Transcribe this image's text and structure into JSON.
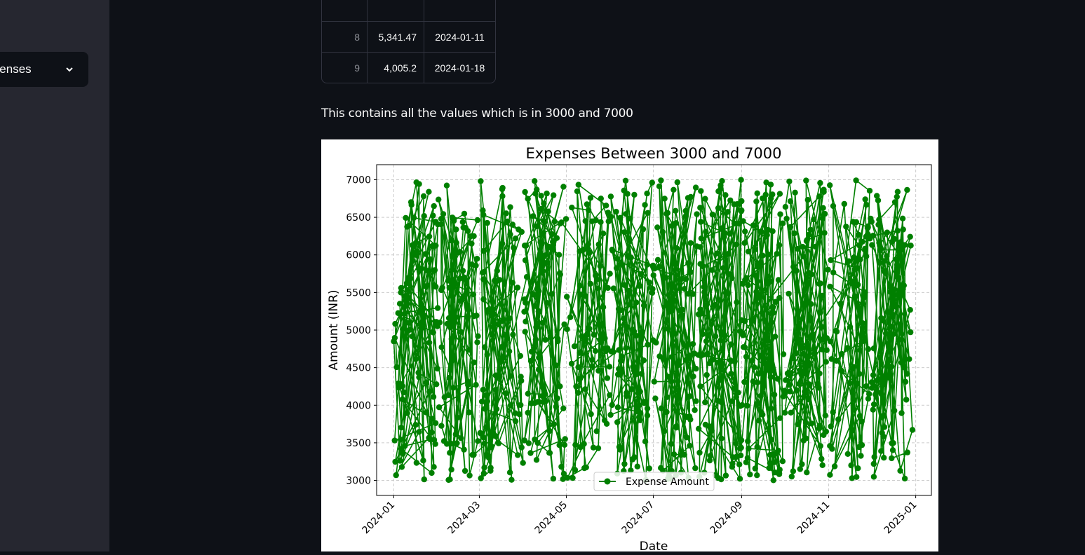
{
  "sidebar": {
    "select_value": "Expenses"
  },
  "table": {
    "rows": [
      {
        "index": "8",
        "amount": "5,341.47",
        "date": "2024-01-11"
      },
      {
        "index": "9",
        "amount": "4,005.2",
        "date": "2024-01-18"
      }
    ]
  },
  "description": "This contains all the values which is in 3000 and 7000",
  "colors": {
    "line": "#008000",
    "page_bg": "#0e1117",
    "sidebar_bg": "#262730"
  },
  "chart_data": {
    "type": "line",
    "title": "Expenses Between 3000 and 7000",
    "xlabel": "Date",
    "ylabel": "Amount (INR)",
    "x_ticks": [
      "2024-01",
      "2024-03",
      "2024-05",
      "2024-07",
      "2024-09",
      "2024-11",
      "2025-01"
    ],
    "y_ticks": [
      "3000",
      "3500",
      "4000",
      "4500",
      "5000",
      "5500",
      "6000",
      "6500",
      "7000"
    ],
    "xlim": [
      "2023-12-20",
      "2025-01-12"
    ],
    "ylim": [
      2800,
      7200
    ],
    "grid": true,
    "legend": "lower center",
    "series": [
      {
        "name": "Expense Amount",
        "marker": "o",
        "color": "#008000",
        "note_values": "approx. 1000 daily points between 3000 and 7000 from 2024-01 to 2024-12, ordered irregularly"
      }
    ]
  }
}
